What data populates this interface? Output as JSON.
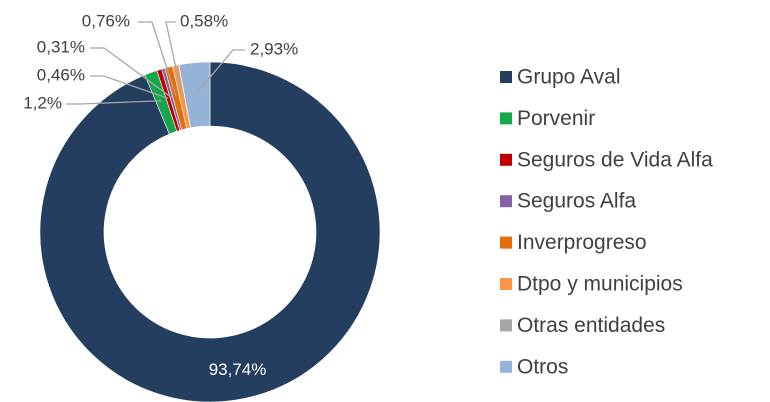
{
  "chart_data": {
    "type": "donut",
    "categories": [
      "Grupo Aval",
      "Porvenir",
      "Seguros de Vida Alfa",
      "Seguros Alfa",
      "Inverprogreso",
      "Dtpo y municipios",
      "Otras entidades",
      "Otros"
    ],
    "values": [
      93.74,
      1.2,
      0.46,
      0.31,
      0.76,
      0.58,
      0.02,
      2.93
    ],
    "value_labels": [
      "93,74%",
      "1,2%",
      "0,46%",
      "0,31%",
      "0,76%",
      "0,58%",
      null,
      "2,93%"
    ],
    "colors": [
      "#243e5f",
      "#16a64c",
      "#c00000",
      "#8064a2",
      "#e46c0a",
      "#f79646",
      "#a6a6a6",
      "#95b3d7"
    ],
    "legend": "right"
  }
}
